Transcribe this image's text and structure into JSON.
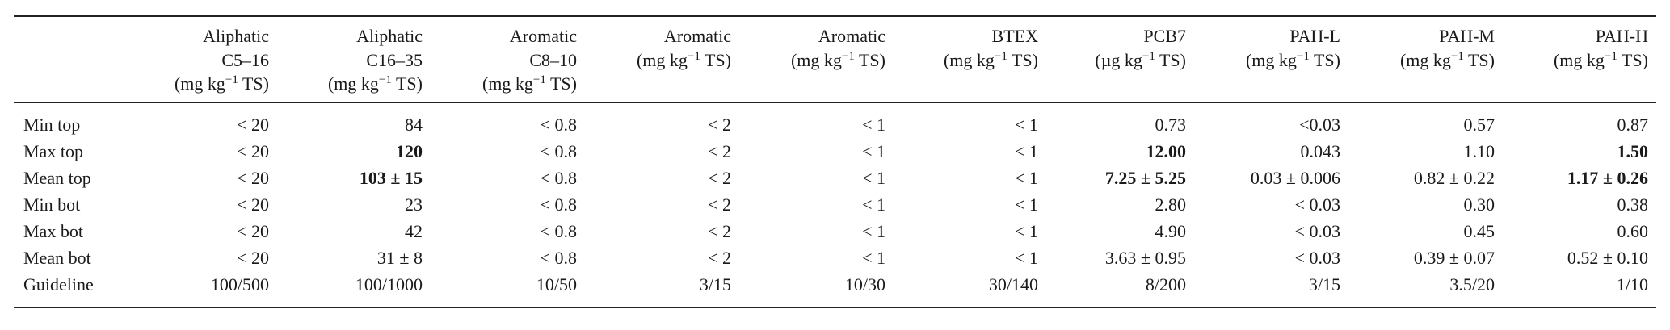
{
  "table": {
    "columns": [
      {
        "lines": [
          "Aliphatic",
          "C5–16"
        ],
        "unit": {
          "pre": "(mg kg",
          "sup": "−1",
          "post": " TS)"
        }
      },
      {
        "lines": [
          "Aliphatic",
          "C16–35"
        ],
        "unit": {
          "pre": "(mg kg",
          "sup": "−1",
          "post": " TS)"
        }
      },
      {
        "lines": [
          "Aromatic",
          "C8–10"
        ],
        "unit": {
          "pre": "(mg kg",
          "sup": "−1",
          "post": " TS)"
        }
      },
      {
        "lines": [
          "Aromatic"
        ],
        "unit": {
          "pre": "(mg kg",
          "sup": "−1",
          "post": " TS)"
        }
      },
      {
        "lines": [
          "Aromatic"
        ],
        "unit": {
          "pre": "(mg kg",
          "sup": "−1",
          "post": " TS)"
        }
      },
      {
        "lines": [
          "BTEX"
        ],
        "unit": {
          "pre": "(mg kg",
          "sup": "−1",
          "post": " TS)"
        }
      },
      {
        "lines": [
          "PCB7"
        ],
        "unit": {
          "pre": "(µg kg",
          "sup": "−1",
          "post": " TS)"
        }
      },
      {
        "lines": [
          "PAH-L"
        ],
        "unit": {
          "pre": "(mg kg",
          "sup": "−1",
          "post": " TS)"
        }
      },
      {
        "lines": [
          "PAH-M"
        ],
        "unit": {
          "pre": "(mg kg",
          "sup": "−1",
          "post": " TS)"
        }
      },
      {
        "lines": [
          "PAH-H"
        ],
        "unit": {
          "pre": "(mg kg",
          "sup": "−1",
          "post": " TS)"
        }
      }
    ],
    "rows": [
      {
        "label": "Min top",
        "cells": [
          {
            "text": "< 20"
          },
          {
            "text": "84"
          },
          {
            "text": "< 0.8"
          },
          {
            "text": "< 2"
          },
          {
            "text": "< 1"
          },
          {
            "text": "< 1"
          },
          {
            "text": "0.73"
          },
          {
            "text": "<0.03"
          },
          {
            "text": "0.57"
          },
          {
            "text": "0.87"
          }
        ]
      },
      {
        "label": "Max top",
        "cells": [
          {
            "text": "< 20"
          },
          {
            "text": "120",
            "bold": true
          },
          {
            "text": "< 0.8"
          },
          {
            "text": "< 2"
          },
          {
            "text": "< 1"
          },
          {
            "text": "< 1"
          },
          {
            "text": "12.00",
            "bold": true
          },
          {
            "text": "0.043"
          },
          {
            "text": "1.10"
          },
          {
            "text": "1.50",
            "bold": true
          }
        ]
      },
      {
        "label": "Mean top",
        "cells": [
          {
            "text": "< 20"
          },
          {
            "text": "103 ± 15",
            "bold": true
          },
          {
            "text": "< 0.8"
          },
          {
            "text": "< 2"
          },
          {
            "text": "< 1"
          },
          {
            "text": "< 1"
          },
          {
            "text": "7.25 ± 5.25",
            "bold": true
          },
          {
            "text": "0.03 ± 0.006"
          },
          {
            "text": "0.82 ± 0.22"
          },
          {
            "text": "1.17 ± 0.26",
            "bold": true
          }
        ]
      },
      {
        "label": "Min bot",
        "cells": [
          {
            "text": "< 20"
          },
          {
            "text": "23"
          },
          {
            "text": "< 0.8"
          },
          {
            "text": "< 2"
          },
          {
            "text": "< 1"
          },
          {
            "text": "< 1"
          },
          {
            "text": "2.80"
          },
          {
            "text": "< 0.03"
          },
          {
            "text": "0.30"
          },
          {
            "text": "0.38"
          }
        ]
      },
      {
        "label": "Max bot",
        "cells": [
          {
            "text": "< 20"
          },
          {
            "text": "42"
          },
          {
            "text": "< 0.8"
          },
          {
            "text": "< 2"
          },
          {
            "text": "< 1"
          },
          {
            "text": "< 1"
          },
          {
            "text": "4.90"
          },
          {
            "text": "< 0.03"
          },
          {
            "text": "0.45"
          },
          {
            "text": "0.60"
          }
        ]
      },
      {
        "label": "Mean bot",
        "cells": [
          {
            "text": "< 20"
          },
          {
            "text": "31 ± 8"
          },
          {
            "text": "< 0.8"
          },
          {
            "text": "< 2"
          },
          {
            "text": "< 1"
          },
          {
            "text": "< 1"
          },
          {
            "text": "3.63 ± 0.95"
          },
          {
            "text": "< 0.03"
          },
          {
            "text": "0.39 ± 0.07"
          },
          {
            "text": "0.52 ± 0.10"
          }
        ]
      },
      {
        "label": "Guideline",
        "cells": [
          {
            "text": "100/500"
          },
          {
            "text": "100/1000"
          },
          {
            "text": "10/50"
          },
          {
            "text": "3/15"
          },
          {
            "text": "10/30"
          },
          {
            "text": "30/140"
          },
          {
            "text": "8/200"
          },
          {
            "text": "3/15"
          },
          {
            "text": "3.5/20"
          },
          {
            "text": "1/10"
          }
        ]
      }
    ]
  }
}
